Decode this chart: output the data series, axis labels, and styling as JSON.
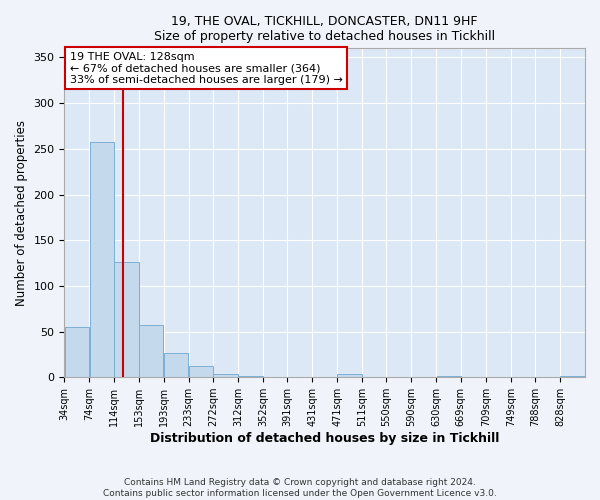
{
  "title": "19, THE OVAL, TICKHILL, DONCASTER, DN11 9HF",
  "subtitle": "Size of property relative to detached houses in Tickhill",
  "xlabel": "Distribution of detached houses by size in Tickhill",
  "ylabel": "Number of detached properties",
  "bar_color": "#c5d9ed",
  "bar_edge_color": "#7bafd4",
  "background_color": "#dce8f5",
  "grid_color": "#ffffff",
  "annotation_box_color": "#cc0000",
  "vline_color": "#cc0000",
  "vline_x": 128,
  "annotation_text": "19 THE OVAL: 128sqm\n← 67% of detached houses are smaller (364)\n33% of semi-detached houses are larger (179) →",
  "footer_text": "Contains HM Land Registry data © Crown copyright and database right 2024.\nContains public sector information licensed under the Open Government Licence v3.0.",
  "bin_labels": [
    "34sqm",
    "74sqm",
    "114sqm",
    "153sqm",
    "193sqm",
    "233sqm",
    "272sqm",
    "312sqm",
    "352sqm",
    "391sqm",
    "431sqm",
    "471sqm",
    "511sqm",
    "550sqm",
    "590sqm",
    "630sqm",
    "669sqm",
    "709sqm",
    "749sqm",
    "788sqm",
    "828sqm"
  ],
  "bin_edges": [
    34,
    74,
    114,
    153,
    193,
    233,
    272,
    312,
    352,
    391,
    431,
    471,
    511,
    550,
    590,
    630,
    669,
    709,
    749,
    788,
    828,
    868
  ],
  "bar_heights": [
    55,
    257,
    126,
    57,
    27,
    12,
    4,
    1,
    0,
    0,
    0,
    3,
    0,
    0,
    0,
    1,
    0,
    0,
    0,
    0,
    1
  ],
  "ylim": [
    0,
    360
  ],
  "yticks": [
    0,
    50,
    100,
    150,
    200,
    250,
    300,
    350
  ],
  "fig_width": 6.0,
  "fig_height": 5.0,
  "fig_bg": "#f0f4fa"
}
